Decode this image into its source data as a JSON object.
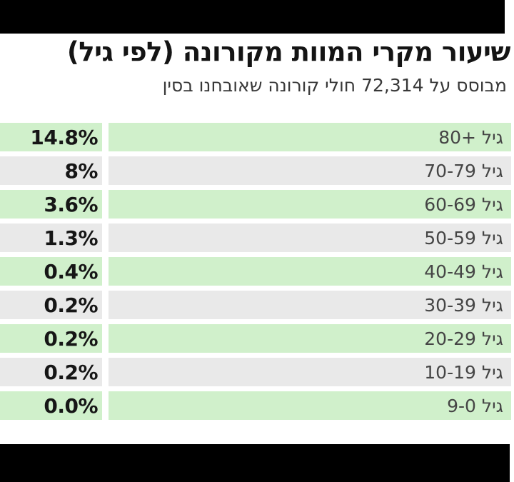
{
  "colors": {
    "row_highlight_green": "#d0f0cb",
    "row_alternate_gray": "#e9e9e9",
    "letterbox_black": "#000000",
    "background_white": "#ffffff",
    "title_text": "#141414",
    "label_text": "#454545"
  },
  "header": {
    "title": "שיעור מקרי המוות מקורונה (לפי גיל)",
    "subtitle": "מבוסס על 72,314 חולי קורונה שאובחנו בסין"
  },
  "chart_data": {
    "type": "table",
    "direction": "rtl",
    "title": "שיעור מקרי המוות מקורונה (לפי גיל)",
    "subtitle": "מבוסס על 72,314 חולי קורונה שאובחנו בסין",
    "legend_position": "none",
    "grid": false,
    "rows": [
      {
        "label": "גיל +80",
        "value": "14.8%",
        "value_numeric": 14.8
      },
      {
        "label": "גיל 70-79",
        "value": "8%",
        "value_numeric": 8
      },
      {
        "label": "גיל 60-69",
        "value": "3.6%",
        "value_numeric": 3.6
      },
      {
        "label": "גיל 50-59",
        "value": "1.3%",
        "value_numeric": 1.3
      },
      {
        "label": "גיל 40-49",
        "value": "0.4%",
        "value_numeric": 0.4
      },
      {
        "label": "גיל 30-39",
        "value": "0.2%",
        "value_numeric": 0.2
      },
      {
        "label": "גיל 20-29",
        "value": "0.2%",
        "value_numeric": 0.2
      },
      {
        "label": "גיל 10-19",
        "value": "0.2%",
        "value_numeric": 0.2
      },
      {
        "label": "גיל 9-0",
        "value": "0.0%",
        "value_numeric": 0.0
      }
    ]
  }
}
